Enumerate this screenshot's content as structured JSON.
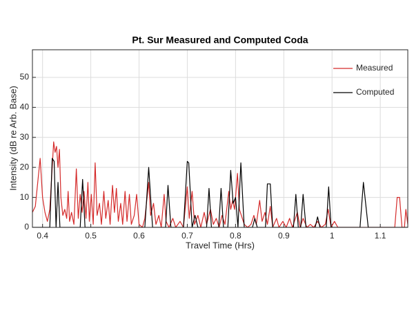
{
  "chart_data": {
    "type": "line",
    "title": "Pt. Sur Measured and Computed Coda",
    "xlabel": "Travel Time (Hrs)",
    "ylabel": "Intensity (dB re Arb. Base)",
    "xlim": [
      0.379,
      1.157
    ],
    "ylim": [
      0,
      59.2
    ],
    "xticks": [
      0.4,
      0.5,
      0.6,
      0.7,
      0.8,
      0.9,
      1,
      1.1
    ],
    "yticks": [
      0,
      10,
      20,
      30,
      40,
      50
    ],
    "grid": true,
    "legend": "upper right",
    "series": [
      {
        "name": "Measured",
        "color": "#d42a2a",
        "x": [
          0.379,
          0.385,
          0.39,
          0.395,
          0.4,
          0.405,
          0.41,
          0.415,
          0.42,
          0.423,
          0.426,
          0.429,
          0.432,
          0.435,
          0.438,
          0.442,
          0.446,
          0.45,
          0.453,
          0.456,
          0.46,
          0.465,
          0.47,
          0.474,
          0.478,
          0.482,
          0.486,
          0.49,
          0.494,
          0.497,
          0.501,
          0.505,
          0.509,
          0.513,
          0.518,
          0.522,
          0.527,
          0.531,
          0.536,
          0.54,
          0.545,
          0.549,
          0.553,
          0.557,
          0.562,
          0.566,
          0.571,
          0.575,
          0.58,
          0.584,
          0.59,
          0.595,
          0.6,
          0.607,
          0.612,
          0.62,
          0.624,
          0.63,
          0.635,
          0.641,
          0.646,
          0.652,
          0.656,
          0.662,
          0.67,
          0.676,
          0.685,
          0.692,
          0.7,
          0.704,
          0.71,
          0.715,
          0.722,
          0.728,
          0.735,
          0.74,
          0.748,
          0.754,
          0.76,
          0.766,
          0.772,
          0.778,
          0.786,
          0.79,
          0.794,
          0.798,
          0.804,
          0.808,
          0.812,
          0.818,
          0.825,
          0.832,
          0.838,
          0.843,
          0.85,
          0.855,
          0.861,
          0.866,
          0.872,
          0.877,
          0.885,
          0.89,
          0.898,
          0.905,
          0.912,
          0.918,
          0.928,
          0.934,
          0.94,
          0.948,
          0.955,
          0.962,
          0.97,
          0.978,
          0.986,
          0.992,
          0.998,
          1.005,
          1.012,
          1.03,
          1.08,
          1.13,
          1.135,
          1.14,
          1.145,
          1.15,
          1.153,
          1.157
        ],
        "values": [
          5,
          7,
          15,
          23,
          10,
          5,
          2,
          6,
          20,
          28.5,
          25,
          27,
          20,
          26,
          10,
          4,
          6,
          3,
          12,
          2,
          5,
          1,
          19.5,
          3,
          11,
          5,
          12,
          3,
          15,
          2,
          11,
          1,
          21.5,
          4,
          8,
          1,
          12,
          3,
          9,
          1,
          14,
          5,
          13,
          2,
          8,
          1,
          12,
          2,
          11,
          1,
          4,
          11,
          1,
          0,
          3,
          15,
          4,
          8,
          1,
          4,
          0,
          11,
          2,
          0,
          3,
          0,
          2,
          0,
          13.5,
          3,
          12,
          1,
          4,
          0,
          5,
          1,
          6,
          1,
          3,
          0,
          4,
          1,
          12,
          6,
          9,
          6,
          18,
          6,
          4,
          1,
          0,
          1,
          4,
          1,
          9,
          2,
          5,
          1,
          7,
          0,
          3,
          0,
          2,
          0,
          3,
          0,
          5,
          0,
          3,
          0,
          1,
          0,
          2,
          0,
          1,
          6,
          0,
          2,
          0,
          0,
          0,
          0,
          10,
          10,
          0,
          0,
          6,
          1
        ]
      },
      {
        "name": "Computed",
        "color": "#000000",
        "x": [
          0.379,
          0.415,
          0.42,
          0.424,
          0.428,
          0.432,
          0.436,
          0.478,
          0.483,
          0.488,
          0.612,
          0.62,
          0.628,
          0.655,
          0.66,
          0.666,
          0.692,
          0.7,
          0.703,
          0.71,
          0.716,
          0.722,
          0.74,
          0.745,
          0.75,
          0.765,
          0.77,
          0.775,
          0.784,
          0.79,
          0.795,
          0.8,
          0.805,
          0.811,
          0.818,
          0.835,
          0.84,
          0.845,
          0.862,
          0.866,
          0.872,
          0.877,
          0.92,
          0.925,
          0.93,
          0.935,
          0.94,
          0.946,
          0.965,
          0.97,
          0.975,
          0.988,
          0.993,
          0.998,
          1.058,
          1.065,
          1.075,
          1.157
        ],
        "values": [
          0,
          0,
          23,
          22,
          0,
          15,
          0,
          0,
          16,
          0,
          0,
          20,
          0,
          0,
          14,
          0,
          0,
          22,
          21.5,
          0,
          4,
          0,
          0,
          13,
          0,
          0,
          13,
          0,
          0,
          19,
          8,
          10,
          0,
          21.5,
          0,
          0,
          3,
          0,
          0,
          14.5,
          14.5,
          0,
          0,
          11,
          0,
          0,
          11,
          0,
          0,
          3.5,
          0,
          0,
          13.5,
          0,
          0,
          15,
          0,
          0
        ]
      }
    ]
  }
}
